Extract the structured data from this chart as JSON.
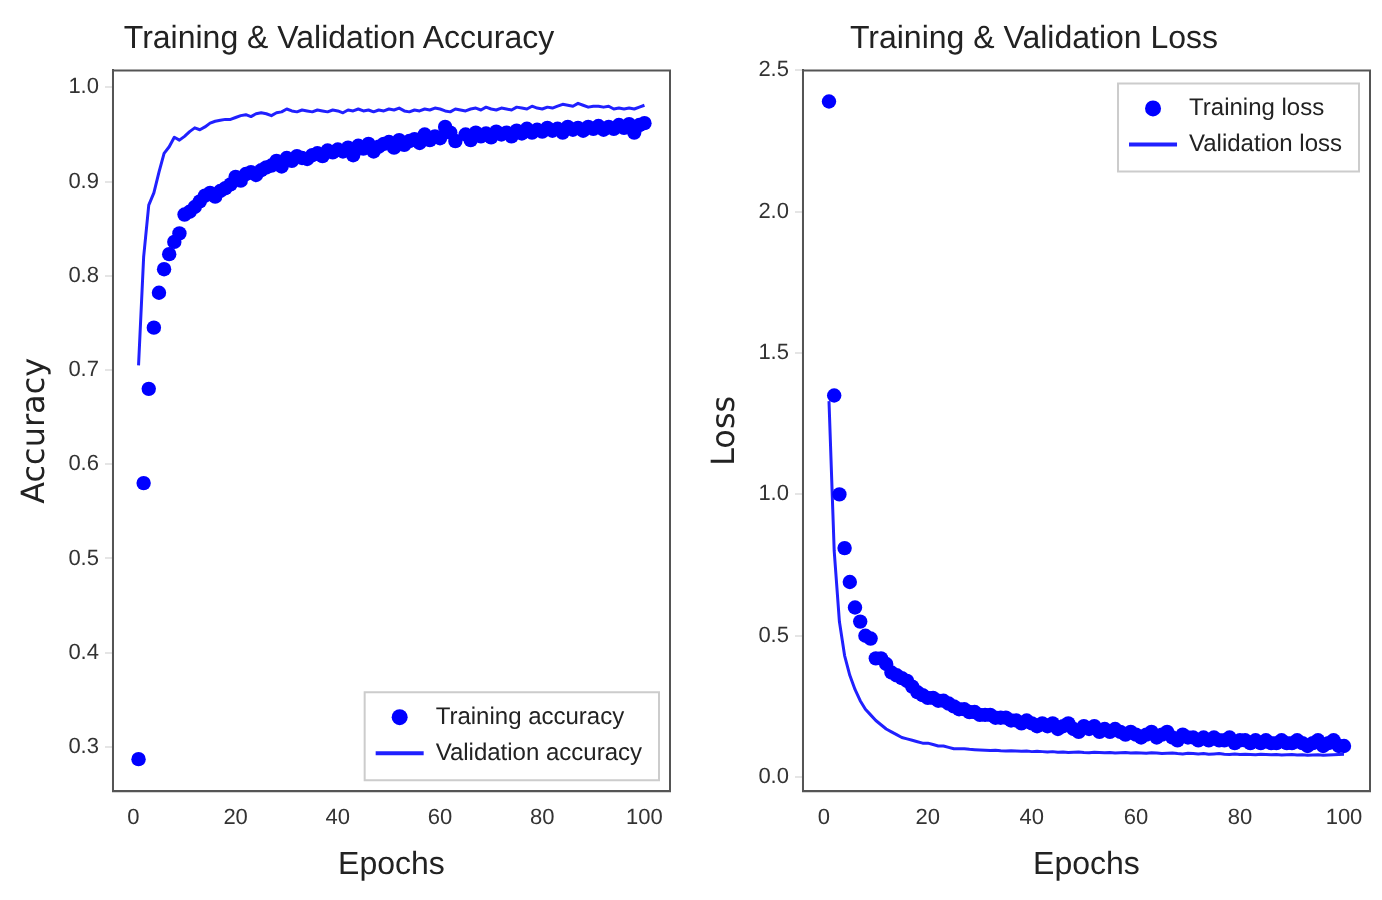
{
  "chart_data": [
    {
      "type": "line",
      "title": "Training & Validation Accuracy",
      "xlabel": "Epochs",
      "ylabel": "Accuracy",
      "xlim": [
        -4,
        105
      ],
      "xticks": [
        0,
        20,
        40,
        60,
        80,
        100
      ],
      "ylim": [
        0.253,
        1.018
      ],
      "yticks": [
        0.3,
        0.4,
        0.5,
        0.6,
        0.7,
        0.8,
        0.9,
        {
          "value": 1,
          "label": "1.0"
        }
      ],
      "legend": "bottom right",
      "grid": false,
      "x": [
        1,
        2,
        3,
        4,
        5,
        6,
        7,
        8,
        9,
        10,
        11,
        12,
        13,
        14,
        15,
        16,
        17,
        18,
        19,
        20,
        21,
        22,
        23,
        24,
        25,
        26,
        27,
        28,
        29,
        30,
        31,
        32,
        33,
        34,
        35,
        36,
        37,
        38,
        39,
        40,
        41,
        42,
        43,
        44,
        45,
        46,
        47,
        48,
        49,
        50,
        51,
        52,
        53,
        54,
        55,
        56,
        57,
        58,
        59,
        60,
        61,
        62,
        63,
        64,
        65,
        66,
        67,
        68,
        69,
        70,
        71,
        72,
        73,
        74,
        75,
        76,
        77,
        78,
        79,
        80,
        81,
        82,
        83,
        84,
        85,
        86,
        87,
        88,
        89,
        90,
        91,
        92,
        93,
        94,
        95,
        96,
        97,
        98,
        99,
        100
      ],
      "series": [
        {
          "name": "Training accuracy",
          "type": "scatter",
          "color": "#0000ff",
          "values": [
            0.287,
            0.58,
            0.68,
            0.745,
            0.782,
            0.807,
            0.823,
            0.836,
            0.845,
            0.865,
            0.868,
            0.873,
            0.879,
            0.885,
            0.888,
            0.884,
            0.89,
            0.893,
            0.897,
            0.905,
            0.901,
            0.908,
            0.91,
            0.907,
            0.912,
            0.915,
            0.917,
            0.922,
            0.916,
            0.925,
            0.922,
            0.927,
            0.925,
            0.924,
            0.928,
            0.93,
            0.927,
            0.933,
            0.931,
            0.934,
            0.932,
            0.936,
            0.928,
            0.938,
            0.935,
            0.94,
            0.932,
            0.937,
            0.94,
            0.942,
            0.936,
            0.944,
            0.939,
            0.943,
            0.945,
            0.941,
            0.95,
            0.944,
            0.948,
            0.946,
            0.958,
            0.952,
            0.943,
            null,
            0.95,
            0.944,
            0.952,
            0.948,
            0.951,
            0.947,
            0.953,
            0.95,
            0.952,
            0.948,
            0.954,
            0.951,
            0.956,
            0.952,
            0.955,
            0.953,
            0.957,
            0.954,
            0.956,
            0.952,
            0.958,
            0.955,
            0.957,
            0.954,
            0.958,
            0.956,
            0.959,
            0.955,
            0.958,
            0.956,
            0.96,
            0.957,
            0.961,
            0.952,
            0.96,
            0.962
          ]
        },
        {
          "name": "Validation accuracy",
          "type": "line",
          "color": "#2020ff",
          "values": [
            0.705,
            0.82,
            0.875,
            0.888,
            0.91,
            0.93,
            0.937,
            0.947,
            0.944,
            0.948,
            0.953,
            0.957,
            0.955,
            0.958,
            0.962,
            0.964,
            0.965,
            0.966,
            0.966,
            0.968,
            0.97,
            0.971,
            0.969,
            0.972,
            0.973,
            0.972,
            0.97,
            0.973,
            0.974,
            0.977,
            0.975,
            0.974,
            0.976,
            0.975,
            0.974,
            0.976,
            0.975,
            0.974,
            0.976,
            0.975,
            0.973,
            0.976,
            0.975,
            0.977,
            0.975,
            0.976,
            0.974,
            0.976,
            0.975,
            0.977,
            0.976,
            0.978,
            0.975,
            0.974,
            0.976,
            0.975,
            0.977,
            0.976,
            0.978,
            0.977,
            0.975,
            0.974,
            0.977,
            0.976,
            0.975,
            0.977,
            0.978,
            0.976,
            0.979,
            0.977,
            0.976,
            0.978,
            0.977,
            0.976,
            0.979,
            0.978,
            0.977,
            0.98,
            0.978,
            0.977,
            0.979,
            0.978,
            0.98,
            0.982,
            0.981,
            0.98,
            0.983,
            0.981,
            0.979,
            0.98,
            0.98,
            0.979,
            0.98,
            0.977,
            0.978,
            0.977,
            0.978,
            0.977,
            0.979,
            0.981
          ]
        }
      ]
    },
    {
      "type": "line",
      "title": "Training & Validation Loss",
      "xlabel": "Epochs",
      "ylabel": "Loss",
      "xlim": [
        -4,
        105
      ],
      "xticks": [
        0,
        20,
        40,
        60,
        80,
        100
      ],
      "ylim": [
        -0.05,
        2.5
      ],
      "yticks": [
        {
          "value": 0,
          "label": "0.0"
        },
        0.5,
        {
          "value": 1,
          "label": "1.0"
        },
        1.5,
        {
          "value": 2,
          "label": "2.0"
        },
        2.5
      ],
      "legend": "top right",
      "grid": false,
      "x": [
        1,
        2,
        3,
        4,
        5,
        6,
        7,
        8,
        9,
        10,
        11,
        12,
        13,
        14,
        15,
        16,
        17,
        18,
        19,
        20,
        21,
        22,
        23,
        24,
        25,
        26,
        27,
        28,
        29,
        30,
        31,
        32,
        33,
        34,
        35,
        36,
        37,
        38,
        39,
        40,
        41,
        42,
        43,
        44,
        45,
        46,
        47,
        48,
        49,
        50,
        51,
        52,
        53,
        54,
        55,
        56,
        57,
        58,
        59,
        60,
        61,
        62,
        63,
        64,
        65,
        66,
        67,
        68,
        69,
        70,
        71,
        72,
        73,
        74,
        75,
        76,
        77,
        78,
        79,
        80,
        81,
        82,
        83,
        84,
        85,
        86,
        87,
        88,
        89,
        90,
        91,
        92,
        93,
        94,
        95,
        96,
        97,
        98,
        99,
        100
      ],
      "series": [
        {
          "name": "Training loss",
          "type": "scatter",
          "color": "#0000ff",
          "values": [
            2.39,
            1.35,
            1.0,
            0.81,
            0.69,
            0.6,
            0.55,
            0.5,
            0.49,
            0.42,
            0.42,
            0.4,
            0.37,
            0.36,
            0.35,
            0.34,
            0.32,
            0.3,
            0.29,
            0.28,
            0.28,
            0.27,
            0.27,
            0.26,
            0.25,
            0.24,
            0.24,
            0.23,
            0.23,
            0.22,
            0.22,
            0.22,
            0.21,
            0.21,
            0.21,
            0.2,
            0.2,
            0.19,
            0.2,
            0.19,
            0.18,
            0.19,
            0.18,
            0.19,
            0.17,
            0.18,
            0.19,
            0.17,
            0.16,
            0.18,
            0.17,
            0.18,
            0.16,
            0.17,
            0.16,
            0.17,
            0.16,
            0.15,
            0.16,
            0.15,
            0.14,
            0.15,
            0.16,
            0.14,
            0.15,
            0.16,
            0.14,
            0.13,
            0.15,
            0.14,
            0.14,
            0.13,
            0.14,
            0.13,
            0.14,
            0.13,
            0.13,
            0.14,
            0.12,
            0.13,
            0.13,
            0.12,
            0.13,
            0.12,
            0.13,
            0.12,
            0.12,
            0.13,
            0.12,
            0.12,
            0.13,
            0.12,
            0.11,
            0.12,
            0.13,
            0.11,
            0.12,
            0.13,
            0.11,
            0.11
          ]
        },
        {
          "name": "Validation loss",
          "type": "line",
          "color": "#2020ff",
          "values": [
            1.33,
            0.8,
            0.55,
            0.43,
            0.36,
            0.31,
            0.27,
            0.24,
            0.22,
            0.2,
            0.185,
            0.17,
            0.16,
            0.15,
            0.14,
            0.135,
            0.13,
            0.125,
            0.12,
            0.12,
            0.115,
            0.11,
            0.11,
            0.105,
            0.1,
            0.1,
            0.1,
            0.098,
            0.097,
            0.096,
            0.095,
            0.094,
            0.095,
            0.093,
            0.092,
            0.093,
            0.092,
            0.091,
            0.092,
            0.09,
            0.091,
            0.09,
            0.089,
            0.09,
            0.088,
            0.089,
            0.087,
            0.088,
            0.089,
            0.087,
            0.086,
            0.088,
            0.087,
            0.086,
            0.087,
            0.085,
            0.086,
            0.087,
            0.085,
            0.086,
            0.085,
            0.084,
            0.086,
            0.085,
            0.083,
            0.084,
            0.085,
            0.083,
            0.082,
            0.084,
            0.083,
            0.082,
            0.083,
            0.081,
            0.082,
            0.083,
            0.081,
            0.08,
            0.082,
            0.08,
            0.081,
            0.08,
            0.079,
            0.081,
            0.08,
            0.079,
            0.08,
            0.078,
            0.079,
            0.08,
            0.078,
            0.079,
            0.077,
            0.078,
            0.079,
            0.077,
            0.078,
            0.079,
            0.08,
            0.081
          ]
        }
      ]
    }
  ]
}
